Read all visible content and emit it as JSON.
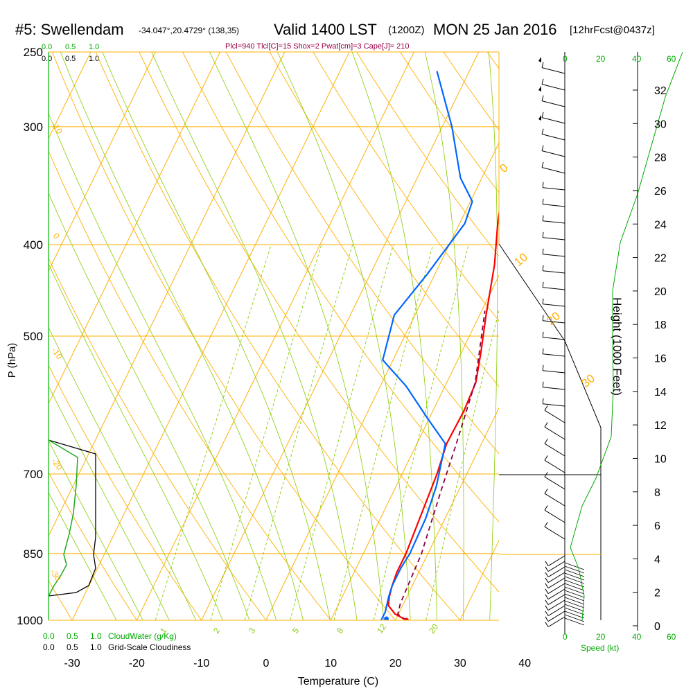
{
  "header": {
    "station": "#5: Swellendam",
    "coords": "-34.047°,20.4729° (138,35)",
    "valid": "Valid 1400 LST",
    "utc": "(1200Z)",
    "date": "MON 25 Jan 2016",
    "forecast": "[12hrFcst@0437z]",
    "params": "Plcl=940 Tlcl[C]=15 Shox=2 Pwat[cm]=3 Cape[J]= 210"
  },
  "colors": {
    "temperature": "#ff0000",
    "dewpoint": "#0066ff",
    "parcel": "#880044",
    "isotherm": "#ffb000",
    "dry_adiabat": "#ffb000",
    "moist_adiabat": "#88cc00",
    "mixing_ratio": "#88cc00",
    "green_text": "#00aa00",
    "cloud_water": "#22aa22"
  },
  "chart_data": {
    "type": "line",
    "subtype": "skew-T log-P sounding",
    "xlabel": "Temperature (C)",
    "ylabel": "P (hPa)",
    "right_label": "Height (1000 Feet)",
    "x_ticks": [
      "-30",
      "-20",
      "-10",
      "0",
      "10",
      "20",
      "30",
      "40"
    ],
    "y_ticks": [
      "250",
      "300",
      "400",
      "500",
      "700",
      "850",
      "1000"
    ],
    "height_ticks": [
      "0",
      "2",
      "4",
      "6",
      "8",
      "10",
      "12",
      "14",
      "16",
      "18",
      "20",
      "22",
      "24",
      "26",
      "28",
      "30",
      "32"
    ],
    "xlim": [
      -35,
      45
    ],
    "ylim": [
      1000,
      250
    ],
    "series": [
      {
        "name": "temperature",
        "points": [
          [
            21.7,
            1000
          ],
          [
            19.5,
            985
          ],
          [
            17.8,
            965
          ],
          [
            17.3,
            945
          ],
          [
            16.9,
            920
          ],
          [
            16.6,
            890
          ],
          [
            16.6,
            850
          ],
          [
            15.4,
            700
          ],
          [
            14.6,
            650
          ],
          [
            14.8,
            600
          ],
          [
            14.5,
            560
          ],
          [
            13.0,
            520
          ],
          [
            11.0,
            475
          ],
          [
            8.5,
            420
          ],
          [
            5.9,
            380
          ],
          [
            3.4,
            340
          ],
          [
            1.3,
            300
          ],
          [
            0.5,
            265
          ]
        ]
      },
      {
        "name": "dewpoint",
        "points": [
          [
            17.8,
            1000
          ],
          [
            17.8,
            980
          ],
          [
            17.2,
            945
          ],
          [
            16.9,
            920
          ],
          [
            16.9,
            880
          ],
          [
            17.2,
            850
          ],
          [
            17.0,
            780
          ],
          [
            16.2,
            720
          ],
          [
            14.4,
            650
          ],
          [
            9.6,
            610
          ],
          [
            4.0,
            565
          ],
          [
            -1.6,
            530
          ],
          [
            -3.2,
            475
          ],
          [
            -1.2,
            430
          ],
          [
            0.8,
            380
          ],
          [
            0.3,
            360
          ],
          [
            -3.3,
            340
          ],
          [
            -8.5,
            300
          ],
          [
            -15.0,
            262
          ]
        ]
      },
      {
        "name": "parcel",
        "points": [
          [
            21.7,
            1000
          ],
          [
            19.9,
            985
          ],
          [
            19.5,
            960
          ],
          [
            19.0,
            850
          ],
          [
            17.3,
            730
          ],
          [
            16.1,
            650
          ],
          [
            14.4,
            560
          ],
          [
            10.5,
            470
          ]
        ]
      }
    ],
    "mixing_ratio_labels": [
      "1",
      "2",
      "3",
      "5",
      "8",
      "12",
      "20"
    ],
    "dry_adiabat_labels": [
      "0",
      "10",
      "20",
      "30"
    ],
    "cloud_scale": {
      "title_cloud": "CloudWater (g/Kg)",
      "title_grid": "Grid-Scale Cloudiness",
      "ticks": [
        "0.0",
        "0.5",
        "1.0"
      ]
    },
    "wind_speed": {
      "label": "Speed (kt)",
      "ticks": [
        "0",
        "20",
        "40",
        "60"
      ]
    }
  }
}
